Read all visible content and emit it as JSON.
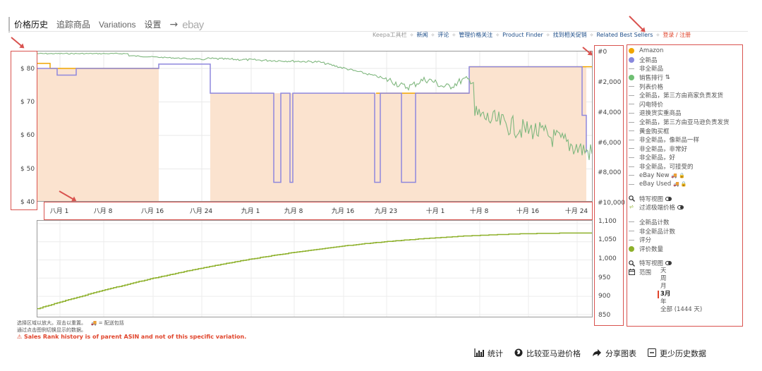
{
  "tabs": {
    "price_history": "价格历史",
    "tracking": "追踪商品",
    "variations": "Variations",
    "settings": "设置",
    "arrow": "→",
    "ebay": "ebay"
  },
  "links": {
    "toolbar": "Keepa工具栏",
    "news": "新闻",
    "reviews": "评论",
    "manage_tracking": "管理价格关注",
    "product_finder": "Product Finder",
    "deals": "找到相关促销",
    "best_sellers": "Related Best Sellers",
    "login": "登录 / 注册",
    "separator": "✧"
  },
  "main_chart": {
    "left_axis": [
      "$ 80",
      "$ 70",
      "$ 60",
      "$ 50",
      "$ 40"
    ],
    "right_axis": [
      "#0",
      "#2,000",
      "#4,000",
      "#6,000",
      "#8,000",
      "#10,000"
    ],
    "x_ticks": [
      "八月 1",
      "八月 8",
      "八月 16",
      "八月 24",
      "九月 1",
      "九月 8",
      "九月 16",
      "九月 23",
      "十月 1",
      "十月 8",
      "十月 16",
      "十月 24"
    ]
  },
  "count_chart": {
    "right_axis": [
      "1,100",
      "1,050",
      "1,000",
      "950",
      "900",
      "850"
    ]
  },
  "legend": {
    "items": [
      {
        "label": "Amazon",
        "type": "dot",
        "color": "#f0a500"
      },
      {
        "label": "全新品",
        "type": "dot",
        "color": "#8888dd"
      },
      {
        "label": "非全新品",
        "type": "dash"
      },
      {
        "label": "销售排行",
        "type": "dot",
        "color": "#6fbf73",
        "suffix": "⇅"
      },
      {
        "label": "列表价格",
        "type": "dash"
      },
      {
        "label": "全新品，第三方由商家负责发货",
        "type": "dash"
      },
      {
        "label": "闪电特价",
        "type": "dash"
      },
      {
        "label": "退换货实重商品",
        "type": "dash"
      },
      {
        "label": "全新品，第三方由亚马逊负责发货",
        "type": "dash"
      },
      {
        "label": "黄金购买框",
        "type": "dash"
      },
      {
        "label": "非全新品，像新品一样",
        "type": "dash"
      },
      {
        "label": "非全新品，非常好",
        "type": "dash"
      },
      {
        "label": "非全新品，好",
        "type": "dash"
      },
      {
        "label": "非全新品，可接受的",
        "type": "dash"
      },
      {
        "label": "eBay New",
        "type": "dash",
        "suffix": "🚚 🔒"
      },
      {
        "label": "eBay Used",
        "type": "dash",
        "suffix": "🚚 🔒"
      }
    ],
    "special_view": "特写视图",
    "filter_outliers": "过滤极端价格",
    "count_items": [
      {
        "label": "全新品计数",
        "type": "dash"
      },
      {
        "label": "非全新品计数",
        "type": "dash"
      },
      {
        "label": "评分",
        "type": "dash"
      },
      {
        "label": "评价数量",
        "type": "dot",
        "color": "#8db02a"
      }
    ],
    "special_view2": "特写视图",
    "range_label": "范围",
    "range_options": [
      "天",
      "周",
      "月",
      "3月",
      "年",
      "全部 (1444 天)"
    ],
    "range_selected": "3月"
  },
  "notes": {
    "line1": "选择区域以放大。双击以重置。",
    "shipping": "= 配送包括",
    "line2": "通过点击图例切换显示的数据。",
    "warning": "⚠ Sales Rank history is of parent ASIN and not of this specific variation."
  },
  "actions": {
    "stats": "统计",
    "compare": "比较亚马逊价格",
    "share": "分享图表",
    "less_data": "更少历史数据"
  }
}
